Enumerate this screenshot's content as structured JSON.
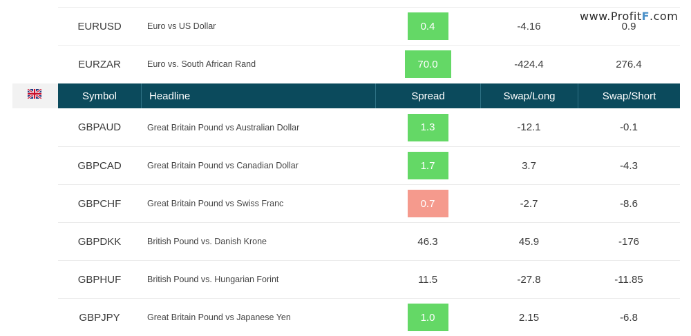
{
  "watermark": {
    "prefix": "www.Profit",
    "f": "F",
    "suffix": ".com"
  },
  "header": {
    "symbol": "Symbol",
    "headline": "Headline",
    "spread": "Spread",
    "swap_long": "Swap/Long",
    "swap_short": "Swap/Short"
  },
  "flag_icon": "uk-flag-icon",
  "colors": {
    "header_bg": "#0b4a5c",
    "spread_green": "#64d866",
    "spread_red": "#f59a8d"
  },
  "rows_top": [
    {
      "symbol": "EURUSD",
      "headline": "Euro vs US Dollar",
      "spread": "0.4",
      "spread_style": "green",
      "swap_long": "-4.16",
      "swap_short": "0.9"
    },
    {
      "symbol": "EURZAR",
      "headline": "Euro vs. South African Rand",
      "spread": "70.0",
      "spread_style": "green",
      "swap_long": "-424.4",
      "swap_short": "276.4"
    }
  ],
  "rows": [
    {
      "symbol": "GBPAUD",
      "headline": "Great Britain Pound vs Australian Dollar",
      "spread": "1.3",
      "spread_style": "green",
      "swap_long": "-12.1",
      "swap_short": "-0.1"
    },
    {
      "symbol": "GBPCAD",
      "headline": "Great Britain Pound vs Canadian Dollar",
      "spread": "1.7",
      "spread_style": "green",
      "swap_long": "3.7",
      "swap_short": "-4.3"
    },
    {
      "symbol": "GBPCHF",
      "headline": "Great Britain Pound vs Swiss Franc",
      "spread": "0.7",
      "spread_style": "red",
      "swap_long": "-2.7",
      "swap_short": "-8.6"
    },
    {
      "symbol": "GBPDKK",
      "headline": "British Pound vs. Danish Krone",
      "spread": "46.3",
      "spread_style": "plain",
      "swap_long": "45.9",
      "swap_short": "-176"
    },
    {
      "symbol": "GBPHUF",
      "headline": "British Pound vs. Hungarian Forint",
      "spread": "11.5",
      "spread_style": "plain",
      "swap_long": "-27.8",
      "swap_short": "-11.85"
    },
    {
      "symbol": "GBPJPY",
      "headline": "Great Britain Pound vs Japanese Yen",
      "spread": "1.0",
      "spread_style": "green",
      "swap_long": "2.15",
      "swap_short": "-6.8"
    }
  ]
}
